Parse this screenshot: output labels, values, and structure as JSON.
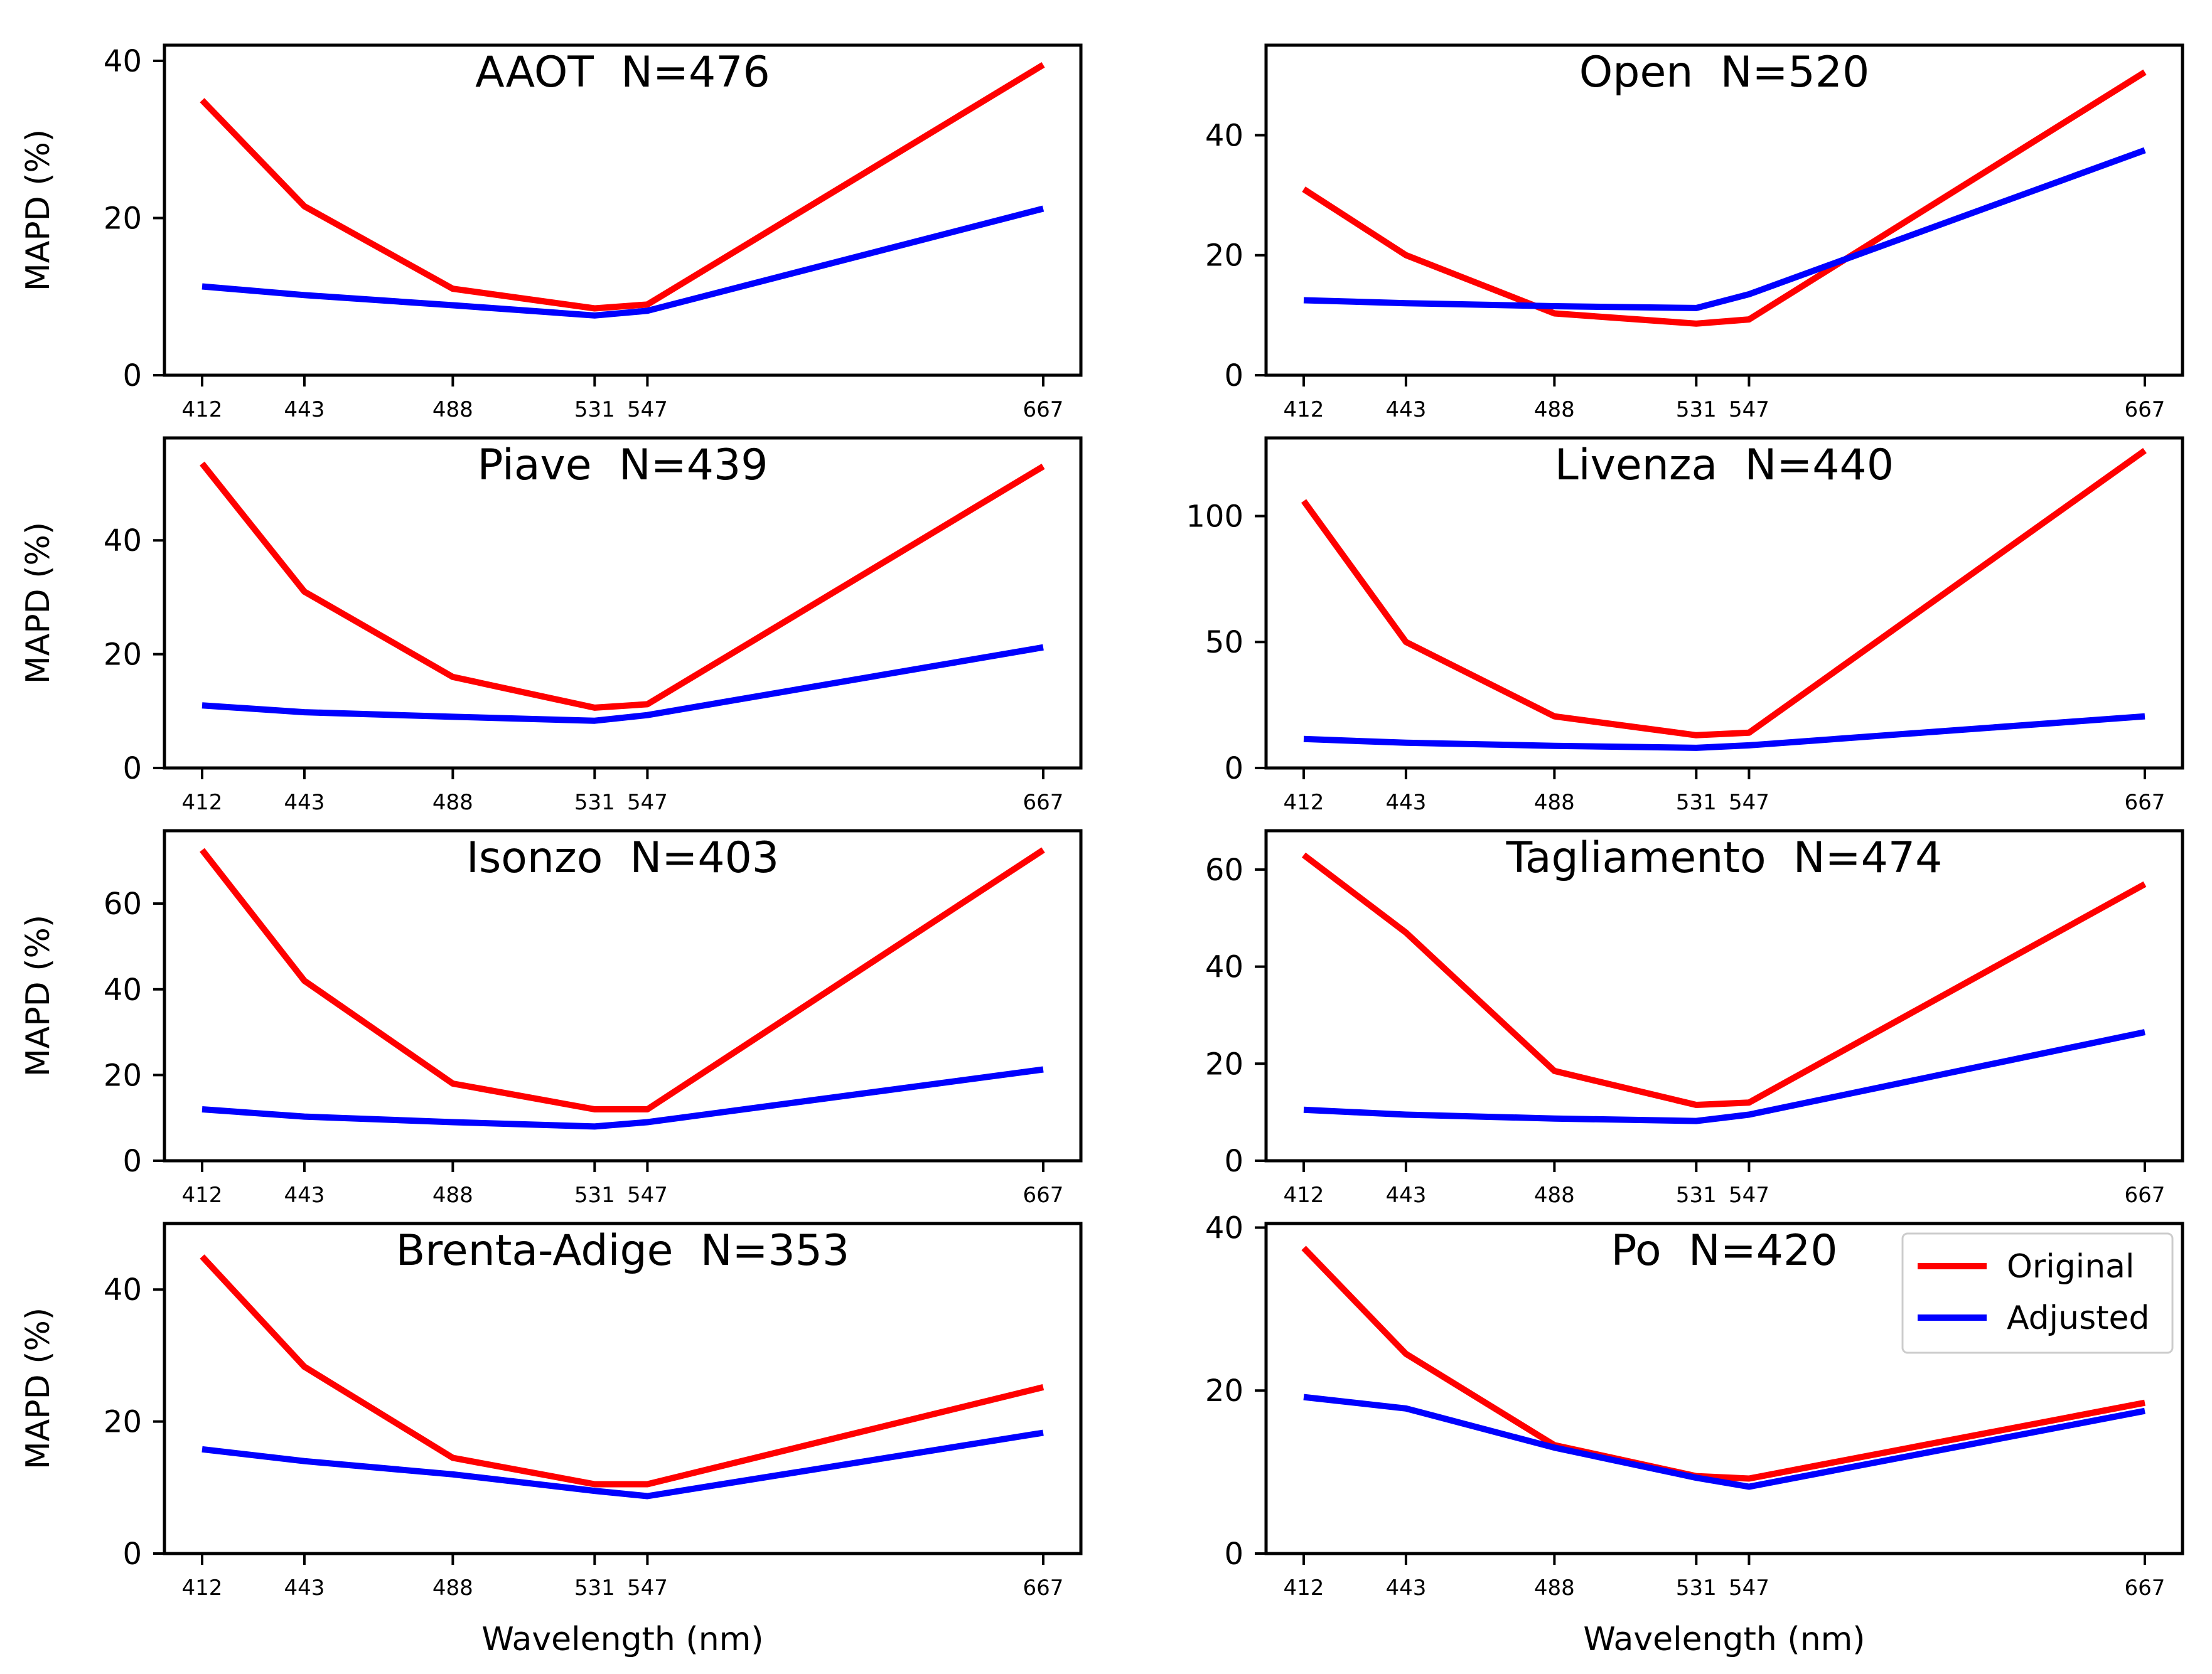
{
  "chart_data": [
    {
      "type": "line",
      "title": "AAOT  N=476",
      "x": [
        412,
        443,
        488,
        531,
        547,
        667
      ],
      "xtick_labels": [
        "412",
        "443",
        "488",
        "531",
        "547",
        "667"
      ],
      "ylabel": "MAPD (%)",
      "xlabel": "",
      "ylim": [
        0,
        42
      ],
      "yticks": [
        0,
        20,
        40
      ],
      "ytick_labels": [
        "0",
        "20",
        "40"
      ],
      "series": [
        {
          "name": "Original",
          "color": "#ff0000",
          "values": [
            35,
            21.5,
            11,
            8.5,
            9,
            39.5
          ]
        },
        {
          "name": "Adjusted",
          "color": "#0000ff",
          "values": [
            11.3,
            10.2,
            8.9,
            7.6,
            8.2,
            21.2
          ]
        }
      ]
    },
    {
      "type": "line",
      "title": "Open  N=520",
      "x": [
        412,
        443,
        488,
        531,
        547,
        667
      ],
      "xtick_labels": [
        "412",
        "443",
        "488",
        "531",
        "547",
        "667"
      ],
      "ylabel": "",
      "xlabel": "",
      "ylim": [
        0,
        55
      ],
      "yticks": [
        0,
        20,
        40
      ],
      "ytick_labels": [
        "0",
        "20",
        "40"
      ],
      "series": [
        {
          "name": "Original",
          "color": "#ff0000",
          "values": [
            31,
            20,
            10.3,
            8.6,
            9.3,
            50.5
          ]
        },
        {
          "name": "Adjusted",
          "color": "#0000ff",
          "values": [
            12.5,
            12,
            11.5,
            11.2,
            13.5,
            37.5
          ]
        }
      ]
    },
    {
      "type": "line",
      "title": "Piave  N=439",
      "x": [
        412,
        443,
        488,
        531,
        547,
        667
      ],
      "xtick_labels": [
        "412",
        "443",
        "488",
        "531",
        "547",
        "667"
      ],
      "ylabel": "MAPD (%)",
      "xlabel": "",
      "ylim": [
        0,
        58
      ],
      "yticks": [
        0,
        20,
        40
      ],
      "ytick_labels": [
        "0",
        "20",
        "40"
      ],
      "series": [
        {
          "name": "Original",
          "color": "#ff0000",
          "values": [
            53.5,
            31,
            16,
            10.6,
            11.2,
            53
          ]
        },
        {
          "name": "Adjusted",
          "color": "#0000ff",
          "values": [
            11,
            9.8,
            9,
            8.3,
            9.3,
            21.2
          ]
        }
      ]
    },
    {
      "type": "line",
      "title": "Livenza  N=440",
      "x": [
        412,
        443,
        488,
        531,
        547,
        667
      ],
      "xtick_labels": [
        "412",
        "443",
        "488",
        "531",
        "547",
        "667"
      ],
      "ylabel": "",
      "xlabel": "",
      "ylim": [
        0,
        131
      ],
      "yticks": [
        0,
        50,
        100
      ],
      "ytick_labels": [
        "0",
        "50",
        "100"
      ],
      "series": [
        {
          "name": "Original",
          "color": "#ff0000",
          "values": [
            106,
            50,
            20.5,
            13,
            14,
            126
          ]
        },
        {
          "name": "Adjusted",
          "color": "#0000ff",
          "values": [
            11.5,
            10,
            8.8,
            8,
            9,
            20.5
          ]
        }
      ]
    },
    {
      "type": "line",
      "title": "Isonzo  N=403",
      "x": [
        412,
        443,
        488,
        531,
        547,
        667
      ],
      "xtick_labels": [
        "412",
        "443",
        "488",
        "531",
        "547",
        "667"
      ],
      "ylabel": "MAPD (%)",
      "xlabel": "",
      "ylim": [
        0,
        77
      ],
      "yticks": [
        0,
        20,
        40,
        60
      ],
      "ytick_labels": [
        "0",
        "20",
        "40",
        "60"
      ],
      "series": [
        {
          "name": "Original",
          "color": "#ff0000",
          "values": [
            72.5,
            42,
            18,
            12,
            12,
            72.5
          ]
        },
        {
          "name": "Adjusted",
          "color": "#0000ff",
          "values": [
            12,
            10.3,
            9,
            8,
            9,
            21.3
          ]
        }
      ]
    },
    {
      "type": "line",
      "title": "Tagliamento  N=474",
      "x": [
        412,
        443,
        488,
        531,
        547,
        667
      ],
      "xtick_labels": [
        "412",
        "443",
        "488",
        "531",
        "547",
        "667"
      ],
      "ylabel": "",
      "xlabel": "",
      "ylim": [
        0,
        68
      ],
      "yticks": [
        0,
        20,
        40,
        60
      ],
      "ytick_labels": [
        "0",
        "20",
        "40",
        "60"
      ],
      "series": [
        {
          "name": "Original",
          "color": "#ff0000",
          "values": [
            63,
            47,
            18.5,
            11.5,
            12,
            57
          ]
        },
        {
          "name": "Adjusted",
          "color": "#0000ff",
          "values": [
            10.5,
            9.5,
            8.7,
            8.2,
            9.5,
            26.5
          ]
        }
      ]
    },
    {
      "type": "line",
      "title": "Brenta-Adige  N=353",
      "x": [
        412,
        443,
        488,
        531,
        547,
        667
      ],
      "xtick_labels": [
        "412",
        "443",
        "488",
        "531",
        "547",
        "667"
      ],
      "ylabel": "MAPD (%)",
      "xlabel": "Wavelength (nm)",
      "ylim": [
        0,
        50
      ],
      "yticks": [
        0,
        20,
        40
      ],
      "ytick_labels": [
        "0",
        "20",
        "40"
      ],
      "series": [
        {
          "name": "Original",
          "color": "#ff0000",
          "values": [
            45,
            28.3,
            14.5,
            10.5,
            10.5,
            25.2
          ]
        },
        {
          "name": "Adjusted",
          "color": "#0000ff",
          "values": [
            15.8,
            14,
            12,
            9.5,
            8.7,
            18.3
          ]
        }
      ]
    },
    {
      "type": "line",
      "title": "Po  N=420",
      "x": [
        412,
        443,
        488,
        531,
        547,
        667
      ],
      "xtick_labels": [
        "412",
        "443",
        "488",
        "531",
        "547",
        "667"
      ],
      "ylabel": "",
      "xlabel": "Wavelength (nm)",
      "ylim": [
        0,
        40.5
      ],
      "yticks": [
        0,
        20,
        40
      ],
      "ytick_labels": [
        "0",
        "20",
        "40"
      ],
      "legend": {
        "placement": "top-right",
        "entries": [
          "Original",
          "Adjusted"
        ]
      },
      "series": [
        {
          "name": "Original",
          "color": "#ff0000",
          "values": [
            37.5,
            24.5,
            13.3,
            9.5,
            9.2,
            18.5
          ]
        },
        {
          "name": "Adjusted",
          "color": "#0000ff",
          "values": [
            19.2,
            17.8,
            13,
            9.3,
            8.2,
            17.5
          ]
        }
      ]
    }
  ]
}
